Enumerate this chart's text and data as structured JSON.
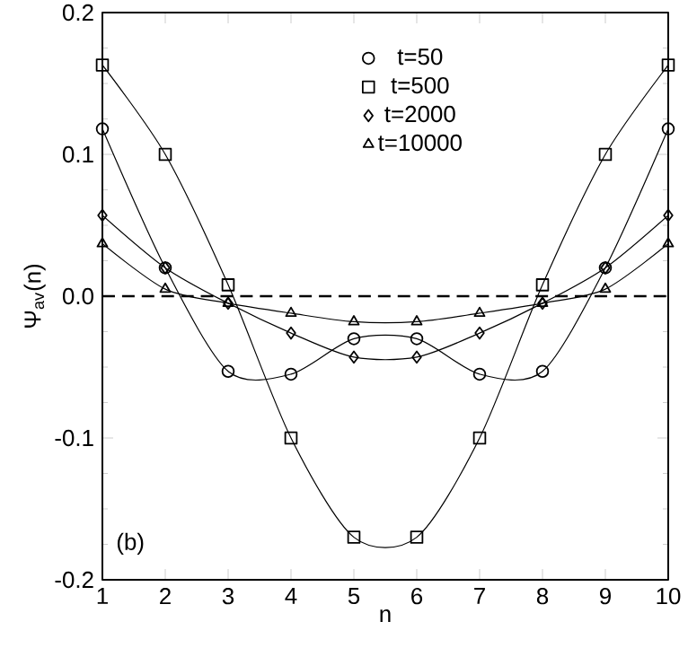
{
  "chart_data": {
    "type": "line",
    "xlabel": "n",
    "ylabel": "Ψ$_{av}$(n)",
    "x": [
      1,
      2,
      3,
      4,
      5,
      6,
      7,
      8,
      9,
      10
    ],
    "series": [
      {
        "name": "t=50",
        "color": "#000000",
        "marker": "circle",
        "values": [
          0.118,
          0.02,
          -0.053,
          -0.055,
          -0.03,
          -0.03,
          -0.055,
          -0.053,
          0.02,
          0.118
        ]
      },
      {
        "name": "t=500",
        "color": "#000000",
        "marker": "square",
        "values": [
          0.163,
          0.1,
          0.008,
          -0.1,
          -0.17,
          -0.17,
          -0.1,
          0.008,
          0.1,
          0.163
        ]
      },
      {
        "name": "t=2000",
        "color": "#000000",
        "marker": "diamond",
        "values": [
          0.057,
          0.02,
          -0.005,
          -0.026,
          -0.043,
          -0.043,
          -0.026,
          -0.005,
          0.02,
          0.057
        ]
      },
      {
        "name": "t=10000",
        "color": "#000000",
        "marker": "triangle",
        "values": [
          0.037,
          0.005,
          -0.005,
          -0.012,
          -0.018,
          -0.018,
          -0.012,
          -0.005,
          0.005,
          0.037
        ]
      }
    ],
    "xlim": [
      1,
      10
    ],
    "ylim": [
      -0.2,
      0.2
    ],
    "xticks": [
      1,
      2,
      3,
      4,
      5,
      6,
      7,
      8,
      9,
      10
    ],
    "yticks": [
      -0.2,
      -0.1,
      {
        "value": 0,
        "label": "0.0"
      },
      0.1,
      0.2
    ],
    "ref_lines": [
      {
        "axis": "y",
        "value": 0,
        "line_style": "dashed",
        "color": "#000000"
      }
    ],
    "annotations": [
      "(b)"
    ],
    "legend": "top right",
    "grid": false,
    "line_style": "solid"
  }
}
